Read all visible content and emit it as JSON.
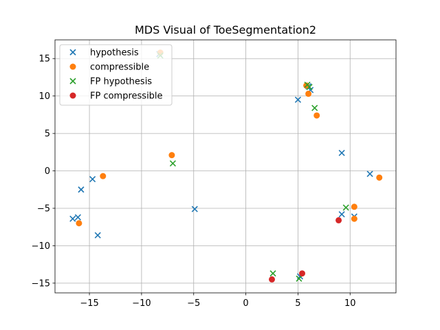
{
  "chart_data": {
    "type": "scatter",
    "title": "MDS Visual of ToeSegmentation2",
    "xlabel": "",
    "ylabel": "",
    "xlim": [
      -18.3,
      14.4
    ],
    "ylim": [
      -16.3,
      17.5
    ],
    "xticks": [
      -15,
      -10,
      -5,
      0,
      5,
      10
    ],
    "yticks": [
      -15,
      -10,
      -5,
      0,
      5,
      10,
      15
    ],
    "xtick_labels": [
      "−15",
      "−10",
      "−5",
      "0",
      "5",
      "10"
    ],
    "ytick_labels": [
      "−15",
      "−10",
      "−5",
      "0",
      "5",
      "10",
      "15"
    ],
    "grid": true,
    "legend_position": "top-left",
    "series": [
      {
        "name": "hypothesis",
        "marker": "x",
        "color": "#1f77b4",
        "points": [
          [
            -16.6,
            -6.4
          ],
          [
            -16.1,
            -6.2
          ],
          [
            -15.8,
            -2.5
          ],
          [
            -14.7,
            -1.1
          ],
          [
            -14.2,
            -8.6
          ],
          [
            -4.9,
            -5.1
          ],
          [
            -8.3,
            15.6
          ],
          [
            5.0,
            9.5
          ],
          [
            6.0,
            11.3
          ],
          [
            6.2,
            10.8
          ],
          [
            9.2,
            2.4
          ],
          [
            9.2,
            -5.8
          ],
          [
            10.4,
            -6.1
          ],
          [
            11.9,
            -0.4
          ],
          [
            5.2,
            -14.1
          ]
        ]
      },
      {
        "name": "compressible",
        "marker": "o",
        "color": "#ff7f0e",
        "points": [
          [
            -13.7,
            -0.7
          ],
          [
            -16.0,
            -7.0
          ],
          [
            -7.1,
            2.1
          ],
          [
            -8.2,
            15.8
          ],
          [
            5.8,
            11.4
          ],
          [
            6.0,
            10.3
          ],
          [
            6.8,
            7.4
          ],
          [
            10.4,
            -4.8
          ],
          [
            10.4,
            -6.4
          ],
          [
            12.8,
            -0.9
          ]
        ]
      },
      {
        "name": "FP hypothesis",
        "marker": "x",
        "color": "#2ca02c",
        "points": [
          [
            -7.0,
            1.0
          ],
          [
            -8.2,
            15.4
          ],
          [
            5.9,
            11.5
          ],
          [
            6.1,
            11.2
          ],
          [
            6.6,
            8.4
          ],
          [
            9.6,
            -4.9
          ],
          [
            2.6,
            -13.7
          ],
          [
            5.1,
            -14.4
          ]
        ]
      },
      {
        "name": "FP compressible",
        "marker": "o",
        "color": "#d62728",
        "points": [
          [
            2.5,
            -14.5
          ],
          [
            5.4,
            -13.7
          ],
          [
            8.9,
            -6.6
          ]
        ]
      }
    ]
  }
}
